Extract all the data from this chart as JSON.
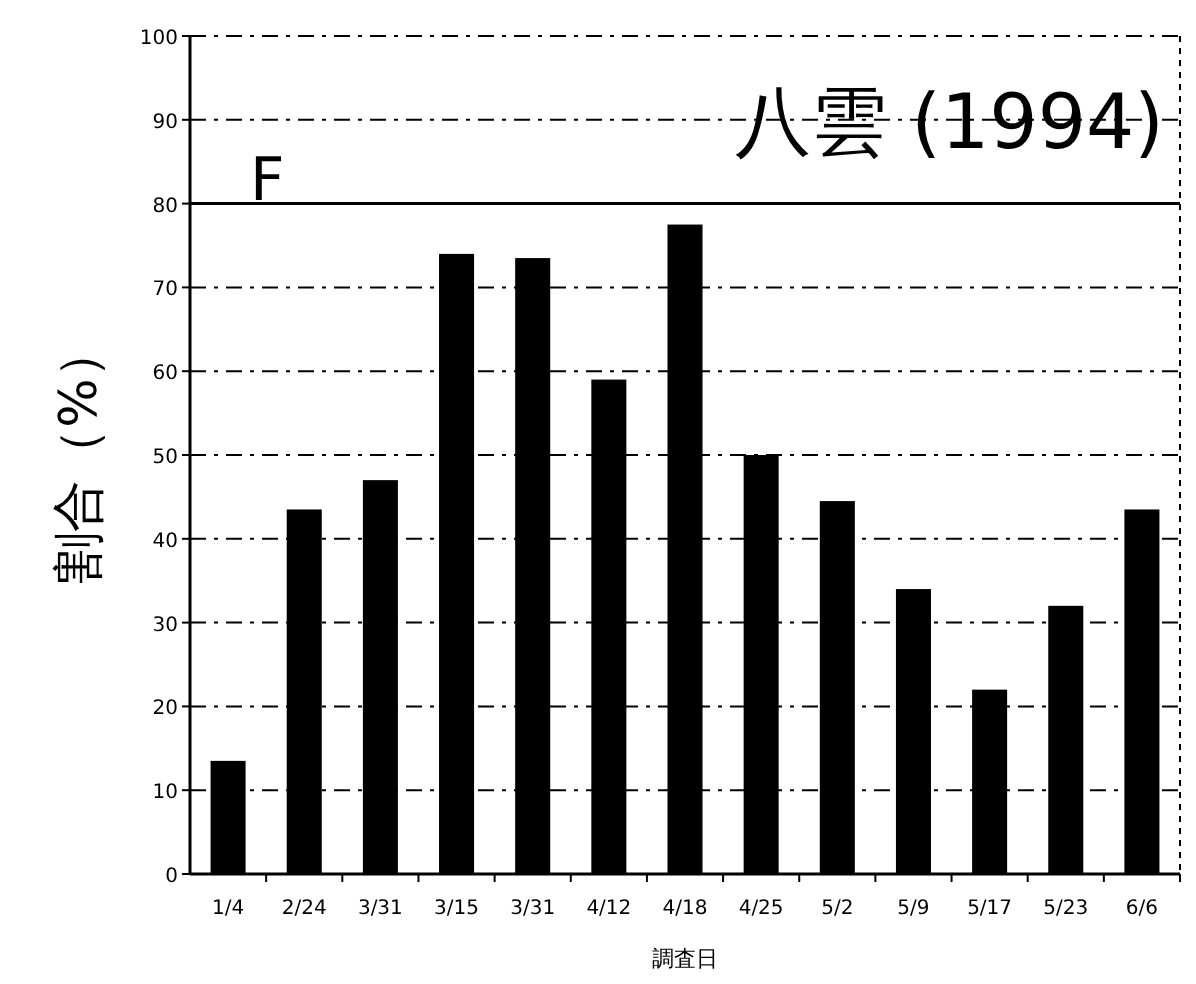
{
  "chart_data": {
    "type": "bar",
    "title": "八雲 (1994)",
    "xlabel": "調査日",
    "ylabel": "割合（%）",
    "categories": [
      "1/4",
      "2/24",
      "3/31",
      "3/15",
      "3/31",
      "4/12",
      "4/18",
      "4/25",
      "5/2",
      "5/9",
      "5/17",
      "5/23",
      "6/6"
    ],
    "values": [
      13.5,
      43.5,
      47,
      74,
      73.5,
      59,
      77.5,
      50,
      44.5,
      34,
      22,
      32,
      43.5
    ],
    "color": "#000000",
    "ylim": [
      0,
      100
    ],
    "yticks": [
      0,
      10,
      20,
      30,
      40,
      50,
      60,
      70,
      80,
      90,
      100
    ],
    "grid": "y",
    "ref_lines": [
      {
        "axis": "y",
        "value": 80,
        "color": "#000000"
      }
    ],
    "annotations": [
      "F"
    ]
  }
}
